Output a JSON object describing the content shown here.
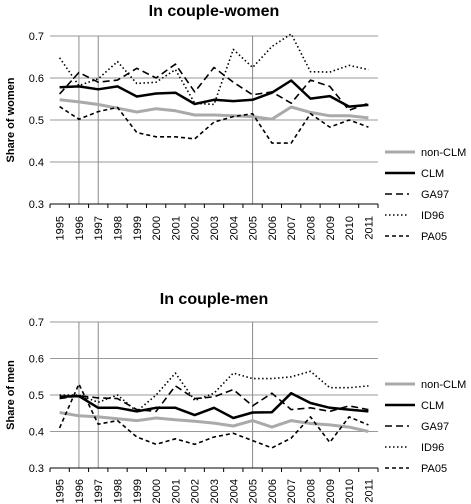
{
  "chart_data": [
    {
      "type": "line",
      "title": "In couple-women",
      "xlabel": "",
      "ylabel": "Share of women",
      "x": [
        "1995",
        "1996",
        "1997",
        "1998",
        "1999",
        "2000",
        "2001",
        "2002",
        "2003",
        "2004",
        "2005",
        "2006",
        "2007",
        "2008",
        "2009",
        "2010",
        "2011"
      ],
      "yticks": [
        "0.3",
        "0.4",
        "0.5",
        "0.6",
        "0.7"
      ],
      "ylim": [
        0.3,
        0.7
      ],
      "grid": "horizontal",
      "reference_lines_x": [
        "1996",
        "1997",
        "2005"
      ],
      "legend_position": "right",
      "series": [
        {
          "name": "non-CLM",
          "style": "thick-gray",
          "color": "#aaaaaa",
          "values": [
            0.548,
            0.543,
            0.537,
            0.528,
            0.519,
            0.527,
            0.522,
            0.512,
            0.512,
            0.51,
            0.508,
            0.502,
            0.531,
            0.518,
            0.51,
            0.51,
            0.505
          ]
        },
        {
          "name": "CLM",
          "style": "thick-black",
          "color": "#000000",
          "values": [
            0.578,
            0.58,
            0.573,
            0.58,
            0.556,
            0.563,
            0.565,
            0.538,
            0.548,
            0.545,
            0.548,
            0.565,
            0.594,
            0.551,
            0.557,
            0.532,
            0.536
          ]
        },
        {
          "name": "GA97",
          "style": "dashed",
          "color": "#000000",
          "values": [
            0.562,
            0.613,
            0.59,
            0.595,
            0.623,
            0.6,
            0.633,
            0.567,
            0.625,
            0.59,
            0.56,
            0.567,
            0.54,
            0.595,
            0.58,
            0.523,
            0.54
          ]
        },
        {
          "name": "ID96",
          "style": "dotted",
          "color": "#000000",
          "values": [
            0.648,
            0.582,
            0.598,
            0.639,
            0.587,
            0.59,
            0.62,
            0.54,
            0.537,
            0.668,
            0.625,
            0.675,
            0.705,
            0.615,
            0.614,
            0.63,
            0.62
          ]
        },
        {
          "name": "PA05",
          "style": "short-dashed",
          "color": "#000000",
          "values": [
            0.532,
            0.502,
            0.52,
            0.53,
            0.47,
            0.46,
            0.46,
            0.455,
            0.495,
            0.508,
            0.515,
            0.445,
            0.445,
            0.515,
            0.483,
            0.5,
            0.483
          ]
        }
      ]
    },
    {
      "type": "line",
      "title": "In couple-men",
      "xlabel": "",
      "ylabel": "Share of men",
      "x": [
        "1995",
        "1996",
        "1997",
        "1998",
        "1999",
        "2000",
        "2001",
        "2002",
        "2003",
        "2004",
        "2005",
        "2006",
        "2007",
        "2008",
        "2009",
        "2010",
        "2011"
      ],
      "yticks": [
        "0.3",
        "0.4",
        "0.5",
        "0.6",
        "0.7"
      ],
      "ylim": [
        0.3,
        0.7
      ],
      "grid": "horizontal",
      "reference_lines_x": [
        "1996",
        "1997",
        "2005"
      ],
      "legend_position": "right",
      "series": [
        {
          "name": "non-CLM",
          "style": "thick-gray",
          "color": "#aaaaaa",
          "values": [
            0.452,
            0.443,
            0.44,
            0.435,
            0.43,
            0.437,
            0.432,
            0.428,
            0.423,
            0.415,
            0.43,
            0.412,
            0.43,
            0.422,
            0.418,
            0.412,
            0.4
          ]
        },
        {
          "name": "CLM",
          "style": "thick-black",
          "color": "#000000",
          "values": [
            0.495,
            0.497,
            0.465,
            0.465,
            0.455,
            0.465,
            0.465,
            0.445,
            0.465,
            0.437,
            0.452,
            0.453,
            0.505,
            0.478,
            0.465,
            0.46,
            0.455
          ]
        },
        {
          "name": "GA97",
          "style": "dashed",
          "color": "#000000",
          "values": [
            0.49,
            0.498,
            0.492,
            0.49,
            0.46,
            0.455,
            0.525,
            0.49,
            0.495,
            0.515,
            0.47,
            0.505,
            0.46,
            0.465,
            0.455,
            0.47,
            0.46
          ]
        },
        {
          "name": "ID96",
          "style": "dotted",
          "color": "#000000",
          "values": [
            0.5,
            0.5,
            0.48,
            0.5,
            0.455,
            0.5,
            0.56,
            0.485,
            0.505,
            0.56,
            0.545,
            0.545,
            0.55,
            0.565,
            0.52,
            0.52,
            0.525
          ]
        },
        {
          "name": "PA05",
          "style": "short-dashed",
          "color": "#000000",
          "values": [
            0.41,
            0.53,
            0.42,
            0.43,
            0.385,
            0.365,
            0.38,
            0.365,
            0.385,
            0.395,
            0.375,
            0.355,
            0.382,
            0.44,
            0.37,
            0.44,
            0.418
          ]
        }
      ]
    }
  ]
}
